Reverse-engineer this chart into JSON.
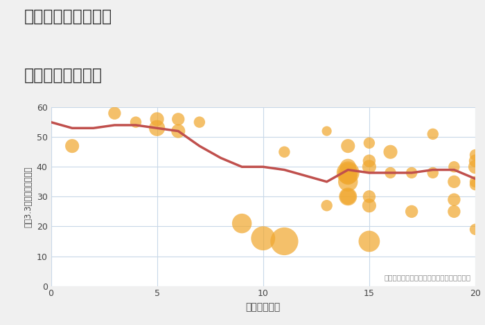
{
  "title_line1": "奈良県奈良市朱雀の",
  "title_line2": "駅距離別土地価格",
  "xlabel": "駅距離（分）",
  "ylabel": "坪（3.3㎡）単価（万円）",
  "annotation": "円の大きさは、取引のあった物件面積を示す",
  "background_color": "#f0f0f0",
  "plot_bg_color": "#ffffff",
  "grid_color": "#c8d8e8",
  "line_color": "#c0504d",
  "scatter_color": "#f0a830",
  "scatter_alpha": 0.72,
  "xlim": [
    0,
    20
  ],
  "ylim": [
    0,
    60
  ],
  "xticks": [
    0,
    5,
    10,
    15,
    20
  ],
  "yticks": [
    0,
    10,
    20,
    30,
    40,
    50,
    60
  ],
  "line_x": [
    0,
    1,
    2,
    3,
    4,
    5,
    6,
    7,
    8,
    9,
    10,
    11,
    12,
    13,
    14,
    15,
    16,
    17,
    18,
    19,
    20
  ],
  "line_y": [
    55,
    53,
    53,
    54,
    54,
    53,
    52,
    47,
    43,
    40,
    40,
    39,
    37,
    35,
    39,
    38,
    38,
    38,
    39,
    39,
    36
  ],
  "scatter_x": [
    1,
    3,
    4,
    5,
    5,
    6,
    6,
    7,
    9,
    10,
    11,
    11,
    13,
    13,
    14,
    14,
    14,
    14,
    14,
    14,
    14,
    14,
    15,
    15,
    15,
    15,
    15,
    16,
    16,
    17,
    17,
    18,
    18,
    19,
    19,
    19,
    19,
    20,
    20,
    20,
    20,
    20,
    15,
    20
  ],
  "scatter_y": [
    47,
    58,
    55,
    53,
    56,
    52,
    56,
    55,
    21,
    16,
    15,
    45,
    52,
    27,
    47,
    40,
    38,
    38,
    37,
    35,
    30,
    30,
    48,
    42,
    40,
    30,
    27,
    45,
    38,
    38,
    25,
    51,
    38,
    40,
    35,
    29,
    25,
    44,
    42,
    40,
    35,
    34,
    15,
    19
  ],
  "scatter_size": [
    30,
    25,
    20,
    40,
    30,
    30,
    25,
    20,
    60,
    90,
    120,
    20,
    15,
    20,
    30,
    40,
    80,
    60,
    50,
    60,
    40,
    50,
    20,
    25,
    30,
    25,
    30,
    30,
    20,
    20,
    25,
    20,
    20,
    20,
    25,
    25,
    25,
    20,
    25,
    30,
    20,
    20,
    70,
    20
  ]
}
